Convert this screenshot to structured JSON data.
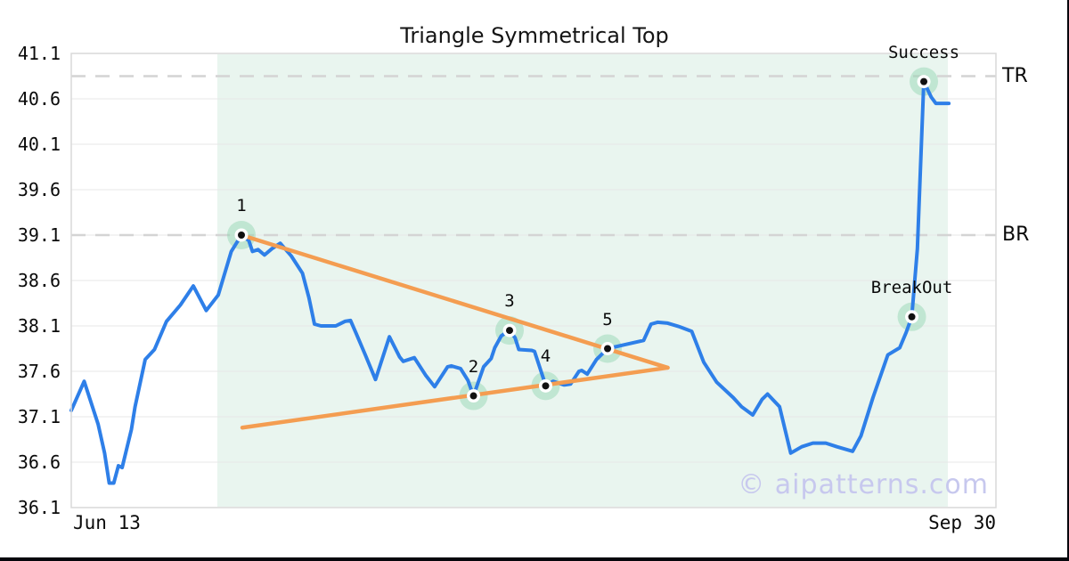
{
  "page": {
    "title": "Triangle Symmetrical Top",
    "watermark": "© aipatterns.com"
  },
  "chart_data": {
    "type": "line",
    "title": "Triangle Symmetrical Top",
    "grid": true,
    "x_axis": {
      "start_label": "Jun 13",
      "end_label": "Sep 30"
    },
    "y_axis": {
      "ylim": [
        36.1,
        41.1
      ],
      "ticks": [
        41.1,
        40.6,
        40.1,
        39.6,
        39.1,
        38.6,
        38.1,
        37.6,
        37.1,
        36.6,
        36.1
      ]
    },
    "levels": [
      {
        "id": "tr",
        "label": "TR",
        "value": 40.85,
        "style": "dashed"
      },
      {
        "id": "br",
        "label": "BR",
        "value": 39.1,
        "style": "dashed"
      }
    ],
    "pattern_zone": {
      "x_start": 0.158,
      "x_end": 0.948
    },
    "trendlines": [
      {
        "name": "upper",
        "points": [
          [
            0.184,
            39.1
          ],
          [
            0.645,
            37.64
          ]
        ]
      },
      {
        "name": "lower",
        "points": [
          [
            0.185,
            36.98
          ],
          [
            0.645,
            37.64
          ]
        ]
      }
    ],
    "markers": [
      {
        "label": "1",
        "x": 0.184,
        "v": 39.1
      },
      {
        "label": "2",
        "x": 0.435,
        "v": 37.33
      },
      {
        "label": "3",
        "x": 0.474,
        "v": 38.05
      },
      {
        "label": "4",
        "x": 0.513,
        "v": 37.44
      },
      {
        "label": "5",
        "x": 0.58,
        "v": 37.85
      },
      {
        "label": "BreakOut",
        "x": 0.909,
        "v": 38.2
      },
      {
        "label": "Success",
        "x": 0.922,
        "v": 40.79
      }
    ],
    "series": [
      {
        "name": "price",
        "points": [
          [
            0.0,
            37.17
          ],
          [
            0.014,
            37.49
          ],
          [
            0.029,
            37.02
          ],
          [
            0.036,
            36.7
          ],
          [
            0.041,
            36.37
          ],
          [
            0.046,
            36.37
          ],
          [
            0.051,
            36.56
          ],
          [
            0.055,
            36.54
          ],
          [
            0.065,
            36.96
          ],
          [
            0.069,
            37.21
          ],
          [
            0.08,
            37.73
          ],
          [
            0.09,
            37.84
          ],
          [
            0.103,
            38.15
          ],
          [
            0.118,
            38.33
          ],
          [
            0.132,
            38.54
          ],
          [
            0.146,
            38.27
          ],
          [
            0.159,
            38.44
          ],
          [
            0.173,
            38.92
          ],
          [
            0.184,
            39.1
          ],
          [
            0.192,
            39.04
          ],
          [
            0.196,
            38.92
          ],
          [
            0.202,
            38.94
          ],
          [
            0.209,
            38.88
          ],
          [
            0.217,
            38.95
          ],
          [
            0.226,
            39.01
          ],
          [
            0.238,
            38.87
          ],
          [
            0.25,
            38.68
          ],
          [
            0.257,
            38.41
          ],
          [
            0.263,
            38.12
          ],
          [
            0.27,
            38.1
          ],
          [
            0.286,
            38.1
          ],
          [
            0.296,
            38.15
          ],
          [
            0.302,
            38.16
          ],
          [
            0.308,
            38.02
          ],
          [
            0.318,
            37.78
          ],
          [
            0.329,
            37.51
          ],
          [
            0.337,
            37.76
          ],
          [
            0.344,
            37.98
          ],
          [
            0.355,
            37.76
          ],
          [
            0.359,
            37.71
          ],
          [
            0.371,
            37.75
          ],
          [
            0.383,
            37.56
          ],
          [
            0.393,
            37.43
          ],
          [
            0.407,
            37.65
          ],
          [
            0.411,
            37.66
          ],
          [
            0.421,
            37.63
          ],
          [
            0.429,
            37.5
          ],
          [
            0.435,
            37.33
          ],
          [
            0.446,
            37.65
          ],
          [
            0.454,
            37.74
          ],
          [
            0.458,
            37.86
          ],
          [
            0.465,
            37.99
          ],
          [
            0.474,
            38.05
          ],
          [
            0.48,
            37.97
          ],
          [
            0.484,
            37.84
          ],
          [
            0.498,
            37.83
          ],
          [
            0.501,
            37.82
          ],
          [
            0.511,
            37.51
          ],
          [
            0.513,
            37.44
          ],
          [
            0.521,
            37.49
          ],
          [
            0.533,
            37.45
          ],
          [
            0.54,
            37.46
          ],
          [
            0.549,
            37.6
          ],
          [
            0.552,
            37.61
          ],
          [
            0.558,
            37.57
          ],
          [
            0.568,
            37.73
          ],
          [
            0.58,
            37.85
          ],
          [
            0.597,
            37.89
          ],
          [
            0.619,
            37.94
          ],
          [
            0.627,
            38.12
          ],
          [
            0.634,
            38.14
          ],
          [
            0.645,
            38.13
          ],
          [
            0.658,
            38.09
          ],
          [
            0.671,
            38.04
          ],
          [
            0.684,
            37.7
          ],
          [
            0.698,
            37.48
          ],
          [
            0.716,
            37.31
          ],
          [
            0.725,
            37.21
          ],
          [
            0.737,
            37.12
          ],
          [
            0.747,
            37.29
          ],
          [
            0.753,
            37.35
          ],
          [
            0.766,
            37.21
          ],
          [
            0.778,
            36.7
          ],
          [
            0.79,
            36.77
          ],
          [
            0.802,
            36.81
          ],
          [
            0.816,
            36.81
          ],
          [
            0.828,
            36.77
          ],
          [
            0.845,
            36.72
          ],
          [
            0.854,
            36.89
          ],
          [
            0.867,
            37.31
          ],
          [
            0.883,
            37.78
          ],
          [
            0.896,
            37.86
          ],
          [
            0.903,
            38.03
          ],
          [
            0.909,
            38.2
          ],
          [
            0.915,
            38.95
          ],
          [
            0.922,
            40.79
          ],
          [
            0.93,
            40.62
          ],
          [
            0.935,
            40.55
          ],
          [
            0.949,
            40.55
          ]
        ]
      }
    ],
    "colors": {
      "line": "#2e7fe8",
      "trendline": "#f49d51",
      "zone": "#e9f5ef",
      "marker_halo": "#8fd4af",
      "marker_dot": "#111111",
      "dashed_level": "#d4d4d4",
      "gridline": "#e7e7e7",
      "plot_border": "#d9d9d9",
      "watermark": "#c7c8ee"
    }
  }
}
